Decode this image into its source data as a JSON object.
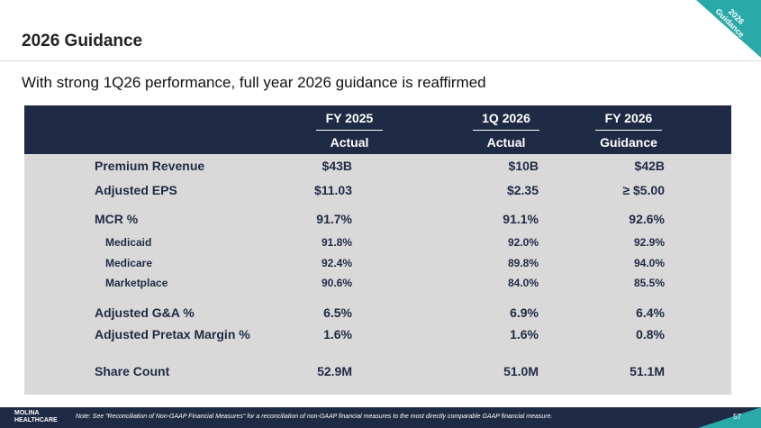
{
  "title": "2026 Guidance",
  "subtitle": "With strong 1Q26 performance, full year 2026 guidance is reaffirmed",
  "corner_badge": {
    "line1": "2026",
    "line2": "Guidance"
  },
  "columns": [
    {
      "period": "FY 2025",
      "type": "Actual"
    },
    {
      "period": "1Q 2026",
      "type": "Actual"
    },
    {
      "period": "FY 2026",
      "type": "Guidance"
    }
  ],
  "rows": [
    {
      "label": "Premium Revenue",
      "values": [
        "$43B",
        "$10B",
        "$42B"
      ]
    },
    {
      "label": "Adjusted EPS",
      "values": [
        "$11.03",
        "$2.35",
        "≥ $5.00"
      ]
    },
    {
      "label": "MCR %",
      "values": [
        "91.7%",
        "91.1%",
        "92.6%"
      ]
    },
    {
      "label": "Medicaid",
      "values": [
        "91.8%",
        "92.0%",
        "92.9%"
      ]
    },
    {
      "label": "Medicare",
      "values": [
        "92.4%",
        "89.8%",
        "94.0%"
      ]
    },
    {
      "label": "Marketplace",
      "values": [
        "90.6%",
        "84.0%",
        "85.5%"
      ]
    },
    {
      "label": "Adjusted G&A %",
      "values": [
        "6.5%",
        "6.9%",
        "6.4%"
      ]
    },
    {
      "label": "Adjusted Pretax Margin %",
      "values": [
        "1.6%",
        "1.6%",
        "0.8%"
      ]
    },
    {
      "label": "Share Count",
      "values": [
        "52.9M",
        "51.0M",
        "51.1M"
      ]
    }
  ],
  "footer": {
    "logo_line1": "MOLINA",
    "logo_line2": "HEALTHCARE",
    "note": "Note: See \"Reconciliation of Non-GAAP Financial Measures\" for a reconciliation of non-GAAP financial measures to the most directly comparable GAAP financial measure.",
    "page_number": "57"
  },
  "colors": {
    "navy": "#1f2a44",
    "teal": "#29a9a8",
    "table_bg": "#d9d9d9"
  }
}
